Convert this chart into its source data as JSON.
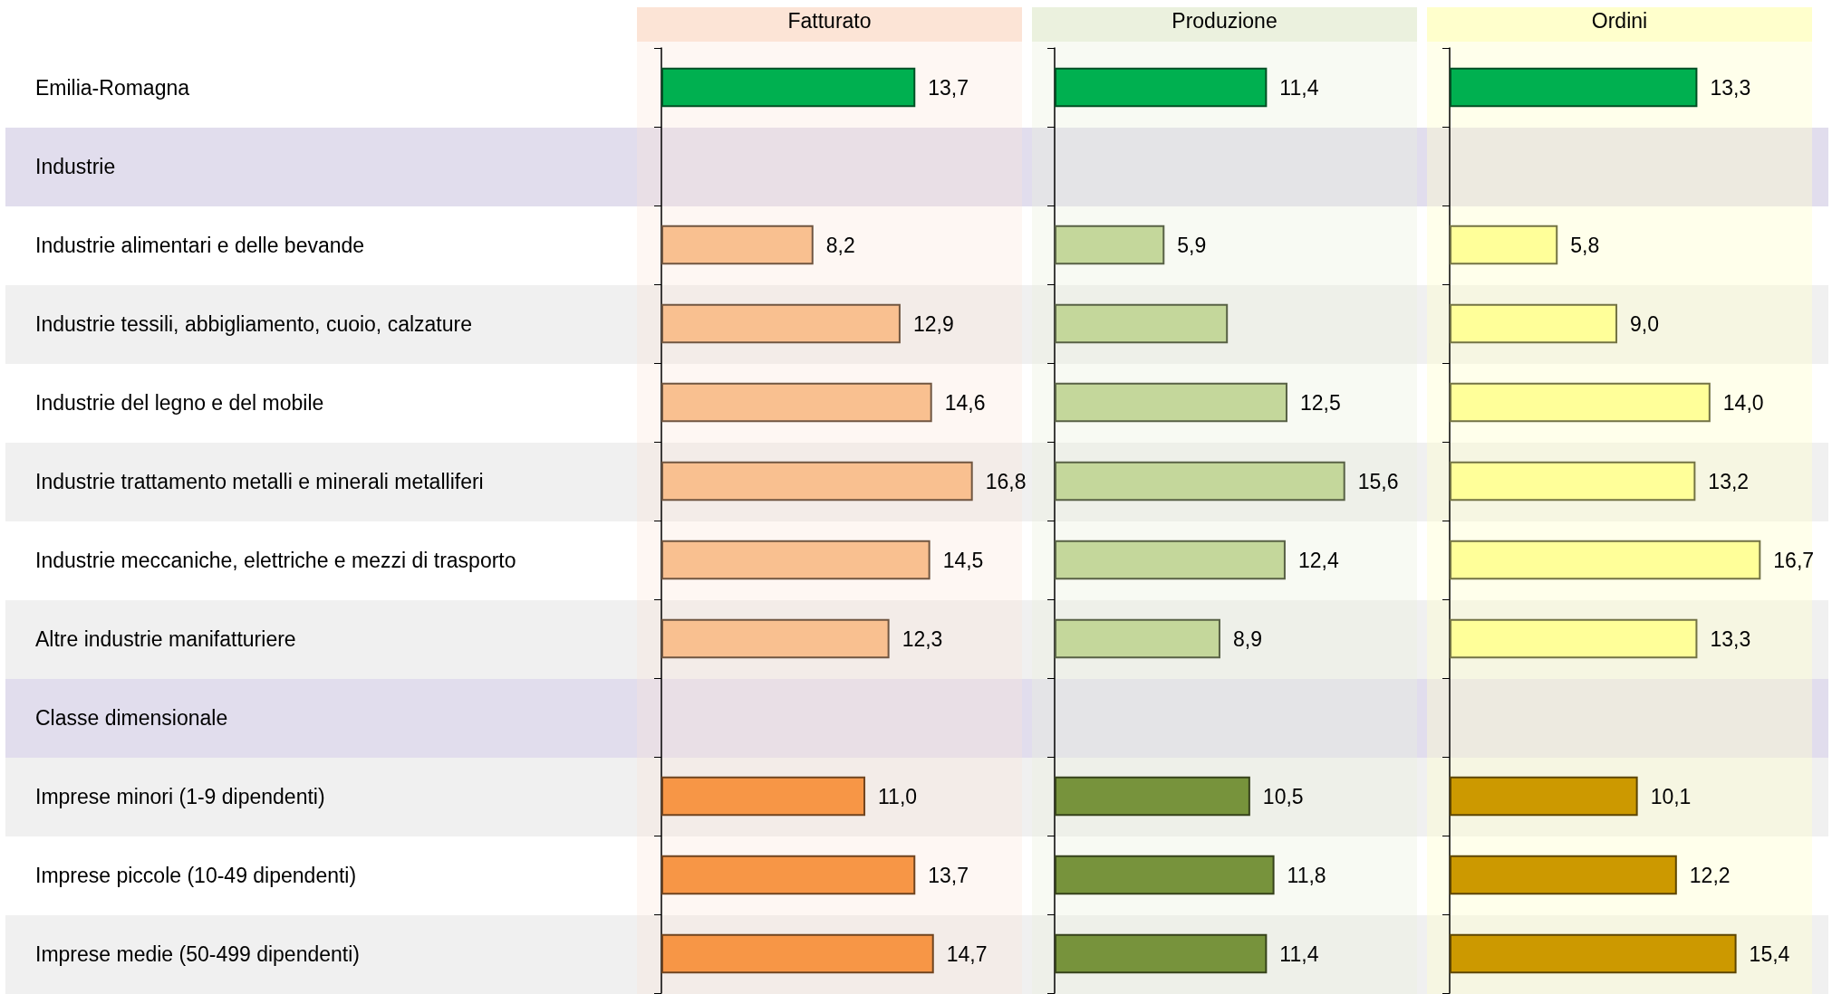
{
  "chart_data": [
    {
      "type": "bar",
      "orientation": "horizontal",
      "title": "Fatturato",
      "categories": [
        "Emilia-Romagna",
        "Industrie",
        "Industrie alimentari e delle bevande",
        "Industrie tessili, abbigliamento, cuoio, calzature",
        "Industrie del legno e del mobile",
        "Industrie trattamento metalli e minerali metalliferi",
        "Industrie meccaniche, elettriche e mezzi di trasporto",
        "Altre industrie manifatturiere",
        "Classe dimensionale",
        "Imprese minori (1-9 dipendenti)",
        "Imprese piccole (10-49 dipendenti)",
        "Imprese medie (50-499 dipendenti)"
      ],
      "values": [
        13.7,
        null,
        8.2,
        12.9,
        14.6,
        16.8,
        14.5,
        12.3,
        null,
        11.0,
        13.7,
        14.7
      ],
      "value_labels": [
        "13,7",
        null,
        "8,2",
        "12,9",
        "14,6",
        "16,8",
        "14,5",
        "12,3",
        null,
        "11,0",
        "13,7",
        "14,7"
      ],
      "colors": [
        "#00b050",
        null,
        "#f9c090",
        "#f9c090",
        "#f9c090",
        "#f9c090",
        "#f9c090",
        "#f9c090",
        null,
        "#f79646",
        "#f79646",
        "#f79646"
      ],
      "tick_labels": "y"
    },
    {
      "type": "bar",
      "orientation": "horizontal",
      "title": "Produzione",
      "values": [
        11.4,
        null,
        5.9,
        9.3,
        12.5,
        15.6,
        12.4,
        8.9,
        null,
        10.5,
        11.8,
        11.4
      ],
      "value_labels": [
        "11,4",
        null,
        "5,9",
        null,
        "12,5",
        "15,6",
        "12,4",
        "8,9",
        null,
        "10,5",
        "11,8",
        "11,4"
      ],
      "colors": [
        "#00b050",
        null,
        "#c4d79b",
        "#c4d79b",
        "#c4d79b",
        "#c4d79b",
        "#c4d79b",
        "#c4d79b",
        null,
        "#77933c",
        "#77933c",
        "#77933c"
      ],
      "tick_labels": false
    },
    {
      "type": "bar",
      "orientation": "horizontal",
      "title": "Ordini",
      "values": [
        13.3,
        null,
        5.8,
        9.0,
        14.0,
        13.2,
        16.7,
        13.3,
        null,
        10.1,
        12.2,
        15.4
      ],
      "value_labels": [
        "13,3",
        null,
        "5,8",
        "9,0",
        "14,0",
        "13,2",
        "16,7",
        "13,3",
        null,
        "10,1",
        "12,2",
        "15,4"
      ],
      "colors": [
        "#00b050",
        null,
        "#ffff99",
        "#ffff99",
        "#ffff99",
        "#ffff99",
        "#ffff99",
        "#ffff99",
        null,
        "#cc9900",
        "#cc9900",
        "#cc9900"
      ],
      "tick_labels": false
    }
  ]
}
